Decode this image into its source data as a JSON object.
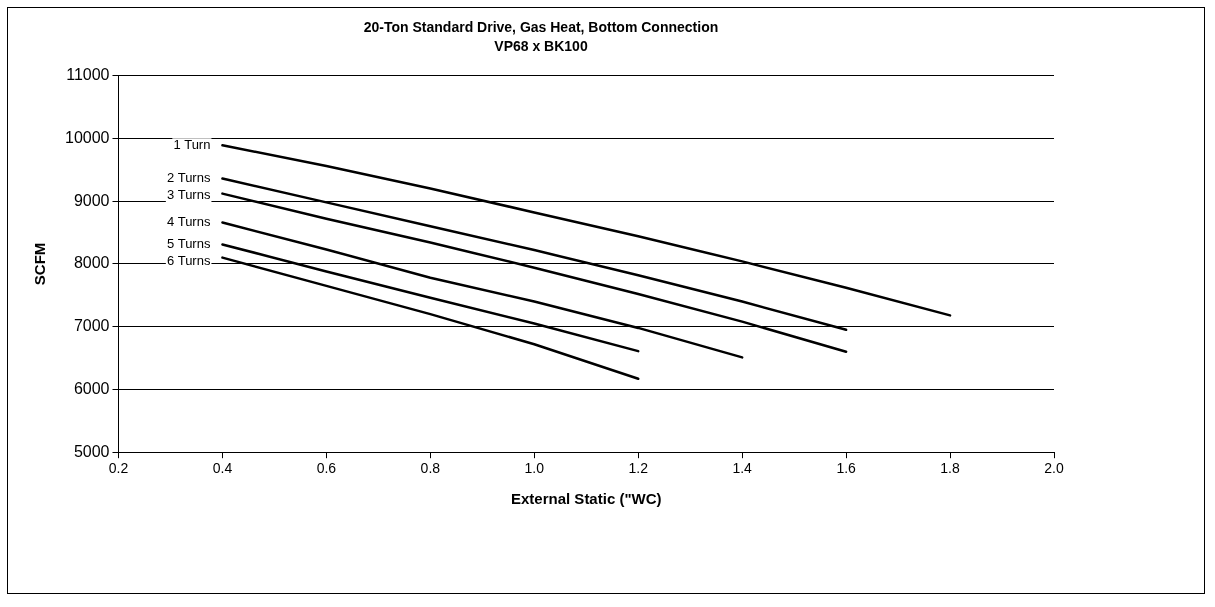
{
  "chart_data": {
    "type": "line",
    "title": "20-Ton Standard Drive, Gas Heat, Bottom Connection",
    "subtitle": "VP68 x BK100",
    "xlabel": "External Static (\"WC)",
    "ylabel": "SCFM",
    "x": [
      0.4,
      0.6,
      0.8,
      1.0,
      1.2,
      1.4,
      1.6,
      1.8
    ],
    "series": [
      {
        "name": "1 Turn",
        "color": "#000000",
        "values": [
          9890,
          9560,
          9200,
          8820,
          8440,
          8040,
          7620,
          7180
        ]
      },
      {
        "name": "2 Turns",
        "color": "#000000",
        "values": [
          9360,
          8980,
          8600,
          8220,
          7820,
          7400,
          6950,
          null
        ]
      },
      {
        "name": "3 Turns",
        "color": "#000000",
        "values": [
          9120,
          8720,
          8340,
          7940,
          7520,
          7080,
          6600,
          null
        ]
      },
      {
        "name": "4 Turns",
        "color": "#000000",
        "values": [
          8660,
          8230,
          7780,
          7400,
          6980,
          6510,
          null,
          null
        ]
      },
      {
        "name": "5 Turns",
        "color": "#000000",
        "values": [
          8310,
          7880,
          7460,
          7050,
          6610,
          null,
          null,
          null
        ]
      },
      {
        "name": "6 Turns",
        "color": "#000000",
        "values": [
          8100,
          7650,
          7200,
          6720,
          6170,
          null,
          null,
          null
        ]
      }
    ],
    "xlim": [
      0.2,
      2.0
    ],
    "xticks": [
      0.2,
      0.4,
      0.6,
      0.8,
      {
        "value": 1.0,
        "label": "1.0"
      },
      1.2,
      1.4,
      1.6,
      1.8,
      {
        "value": 2.0,
        "label": "2.0"
      }
    ],
    "ylim": [
      5000,
      11000
    ],
    "yticks": [
      5000,
      6000,
      7000,
      8000,
      9000,
      10000,
      11000
    ],
    "grid": "y",
    "legend": false,
    "marker": "none",
    "line_style": "solid"
  }
}
